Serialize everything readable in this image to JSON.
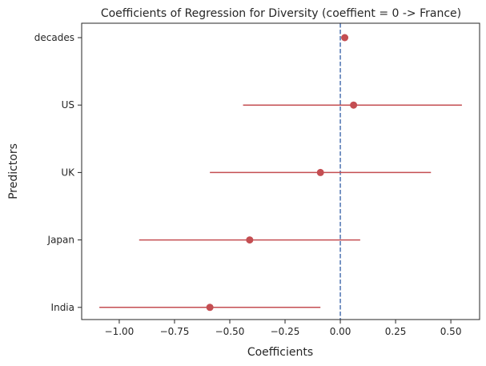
{
  "chart_data": {
    "type": "scatter",
    "subtype": "coefficient-plot-with-error-bars",
    "title": "Coefficients of Regression for Diversity (coeffient = 0 -> France)",
    "xlabel": "Coefficients",
    "ylabel": "Predictors",
    "xlim": [
      -1.17,
      0.63
    ],
    "xticks": [
      -1.0,
      -0.75,
      -0.5,
      -0.25,
      0.0,
      0.25,
      0.5
    ],
    "xtick_labels": [
      "−1.00",
      "−0.75",
      "−0.50",
      "−0.25",
      "0.00",
      "0.25",
      "0.50"
    ],
    "categories": [
      "decades",
      "US",
      "UK",
      "Japan",
      "India"
    ],
    "points": [
      {
        "label": "decades",
        "coef": 0.02,
        "low": 0.02,
        "high": 0.02
      },
      {
        "label": "US",
        "coef": 0.06,
        "low": -0.44,
        "high": 0.55
      },
      {
        "label": "UK",
        "coef": -0.09,
        "low": -0.59,
        "high": 0.41
      },
      {
        "label": "Japan",
        "coef": -0.41,
        "low": -0.91,
        "high": 0.09
      },
      {
        "label": "India",
        "coef": -0.59,
        "low": -1.09,
        "high": -0.09
      }
    ],
    "reference_line": {
      "x": 0.0,
      "style": "dashed"
    },
    "grid": false,
    "colors": {
      "marker": "#c44e52",
      "errorbar": "#c44e52",
      "reference": "#4c72b0",
      "axes": "#262626"
    }
  }
}
